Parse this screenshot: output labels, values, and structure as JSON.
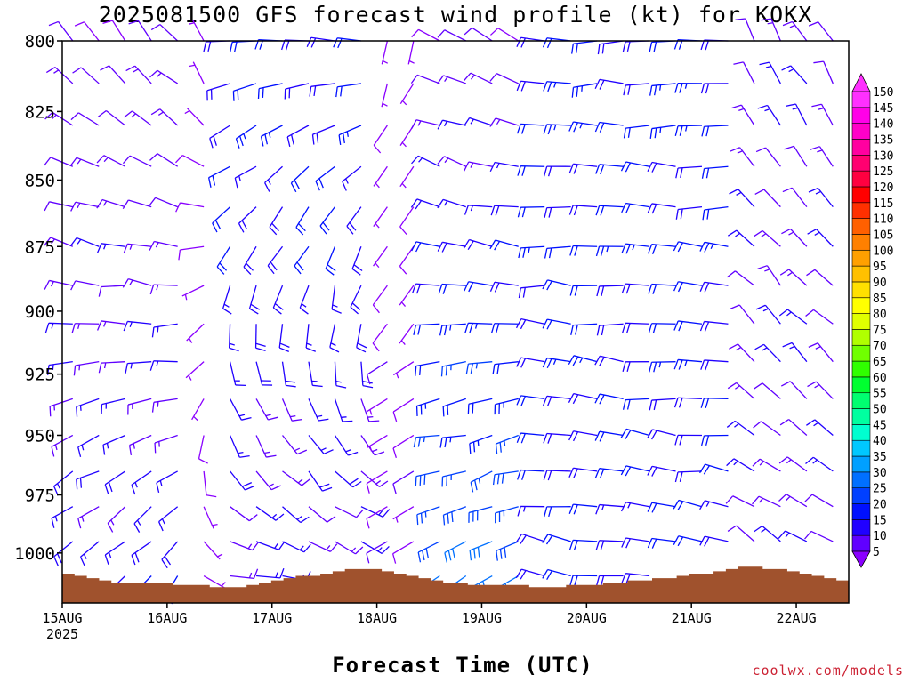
{
  "title": "2025081500 GFS forecast wind profile (kt) for KOKX",
  "xlabel": "Forecast Time (UTC)",
  "credit": "coolwx.com/models",
  "chart_data": {
    "type": "wind-barb-profile",
    "title": "2025081500 GFS forecast wind profile (kt) for KOKX",
    "xlabel": "Forecast Time (UTC)",
    "ylabel": "",
    "x_ticks": [
      "15AUG",
      "16AUG",
      "17AUG",
      "18AUG",
      "19AUG",
      "20AUG",
      "21AUG",
      "22AUG"
    ],
    "x_tick_year": "2025",
    "x_range_days": [
      0,
      7.5
    ],
    "y_ticks": [
      800,
      825,
      850,
      875,
      900,
      925,
      950,
      975,
      1000
    ],
    "y_range_hpa": [
      800,
      1022
    ],
    "y_scale": "log-pressure",
    "pressure_levels": [
      800,
      815,
      830,
      845,
      860,
      875,
      890,
      905,
      920,
      935,
      950,
      965,
      980,
      995,
      1010
    ],
    "forecast_hours_step": 6,
    "colorbar": {
      "levels": [
        5,
        10,
        15,
        20,
        25,
        30,
        35,
        40,
        45,
        50,
        55,
        60,
        65,
        70,
        75,
        80,
        85,
        90,
        95,
        100,
        105,
        110,
        115,
        120,
        125,
        130,
        135,
        140,
        145,
        150
      ],
      "colors": [
        "#8a00ff",
        "#6000ff",
        "#2000ff",
        "#0010ff",
        "#0040ff",
        "#0070ff",
        "#00a0ff",
        "#00c8ff",
        "#00ffd0",
        "#00ffa0",
        "#00ff70",
        "#00ff30",
        "#30ff00",
        "#70ff00",
        "#b0ff00",
        "#e0ff00",
        "#ffff00",
        "#ffe000",
        "#ffc000",
        "#ffa000",
        "#ff8000",
        "#ff6000",
        "#ff3000",
        "#ff0000",
        "#ff0040",
        "#ff0070",
        "#ff00a0",
        "#ff00c8",
        "#ff00e8",
        "#ff30ff"
      ]
    },
    "surface_pressure_hpa": [
      1009,
      1010,
      1011,
      1012,
      1013,
      1013,
      1013,
      1013,
      1013,
      1014,
      1014,
      1014,
      1015,
      1015,
      1015,
      1014,
      1013,
      1012,
      1011,
      1010,
      1010,
      1009,
      1008,
      1007,
      1007,
      1007,
      1008,
      1009,
      1010,
      1011,
      1012,
      1013,
      1013,
      1014,
      1014,
      1014,
      1014,
      1014,
      1015,
      1015,
      1015,
      1014,
      1014,
      1014,
      1013,
      1013,
      1012,
      1012,
      1011,
      1011,
      1010,
      1009,
      1009,
      1008,
      1007,
      1006,
      1006,
      1007,
      1007,
      1008,
      1009,
      1010,
      1011,
      1012
    ],
    "wind_regimes": [
      {
        "from_day": 0.0,
        "to_day": 1.2,
        "upper_dir": 320,
        "lower_dir": 220,
        "upper_kt": 12,
        "lower_kt": 18
      },
      {
        "from_day": 1.2,
        "to_day": 1.6,
        "upper_dir": 340,
        "lower_dir": 130,
        "upper_kt": 8,
        "lower_kt": 7
      },
      {
        "from_day": 1.6,
        "to_day": 3.1,
        "upper_dir": 270,
        "lower_dir": 100,
        "upper_kt": 22,
        "lower_kt": 14
      },
      {
        "from_day": 3.1,
        "to_day": 3.4,
        "upper_dir": 200,
        "lower_dir": 250,
        "upper_kt": 6,
        "lower_kt": 10
      },
      {
        "from_day": 3.4,
        "to_day": 4.6,
        "upper_dir": 300,
        "lower_dir": 240,
        "upper_kt": 12,
        "lower_kt": 32
      },
      {
        "from_day": 4.6,
        "to_day": 6.4,
        "upper_dir": 270,
        "lower_dir": 280,
        "upper_kt": 22,
        "lower_kt": 20
      },
      {
        "from_day": 6.4,
        "to_day": 7.5,
        "upper_dir": 330,
        "lower_dir": 300,
        "upper_kt": 14,
        "lower_kt": 14
      }
    ]
  }
}
